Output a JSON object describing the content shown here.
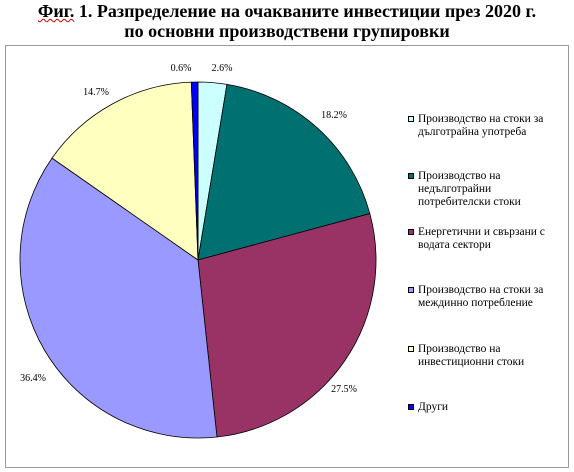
{
  "title": {
    "fig_label": "Фиг.",
    "line1_rest": " 1. Разпределение на очакваните инвестиции през 2020 г.",
    "line2": "по основни производствени групировки"
  },
  "chart_data": {
    "type": "pie",
    "title": "Фиг. 1. Разпределение на очакваните инвестиции през 2020 г. по основни производствени групировки",
    "slices": [
      {
        "name": "Производство на стоки за дълготрайна употреба",
        "value": 2.6,
        "label": "2.6%",
        "color": "#ccffff"
      },
      {
        "name": "Производство на недълготрайни потребителски стоки",
        "value": 18.2,
        "label": "18.2%",
        "color": "#007070"
      },
      {
        "name": "Енергетични и свързани с водата сектори",
        "value": 27.5,
        "label": "27.5%",
        "color": "#993366"
      },
      {
        "name": "Производство на стоки за междинно потребление",
        "value": 36.4,
        "label": "36.4%",
        "color": "#9999ff"
      },
      {
        "name": "Производство на инвестиционни стоки",
        "value": 14.7,
        "label": "14.7%",
        "color": "#ffffc0"
      },
      {
        "name": "Други",
        "value": 0.6,
        "label": "0.6%",
        "color": "#0000ff"
      }
    ],
    "legend_position": "right"
  },
  "legend": [
    {
      "lines": [
        "Производство на стоки за",
        "дълготрайна употреба"
      ]
    },
    {
      "lines": [
        "Производство на",
        "недълготрайни",
        "потребителски стоки"
      ]
    },
    {
      "lines": [
        "Енергетични и свързани с",
        "водата сектори"
      ]
    },
    {
      "lines": [
        "Производство на стоки за",
        "междинно потребление"
      ]
    },
    {
      "lines": [
        "Производство на",
        "инвестиционни стоки"
      ]
    },
    {
      "lines": [
        "Други"
      ]
    }
  ]
}
